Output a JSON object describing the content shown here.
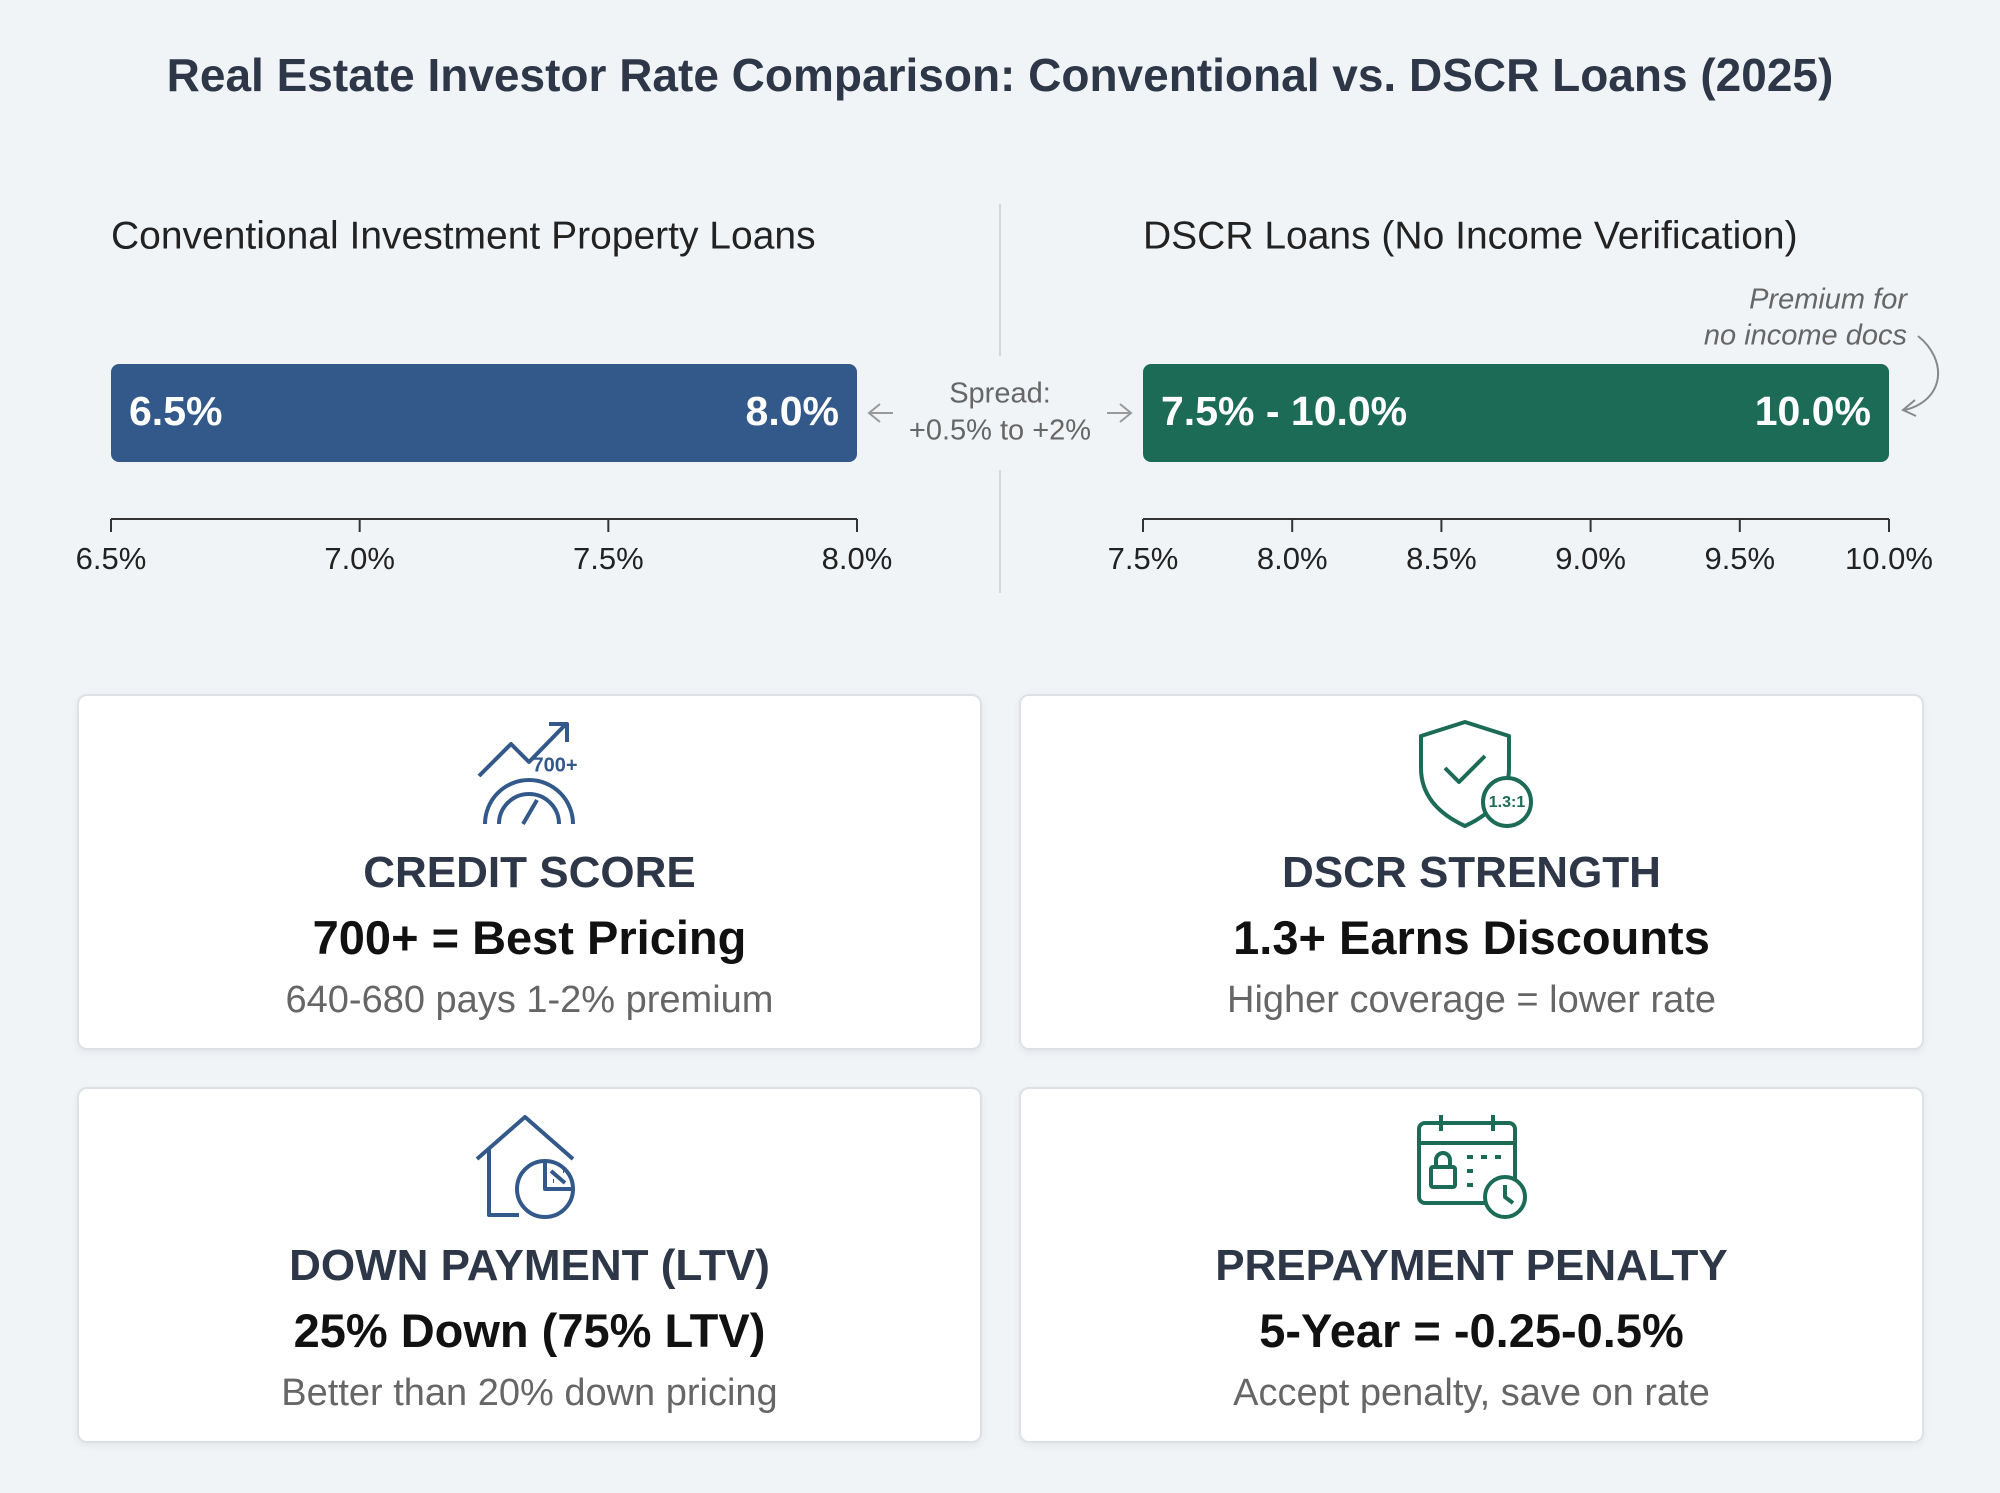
{
  "title": "Real Estate Investor Rate Comparison: Conventional vs. DSCR Loans (2025)",
  "chart_data": [
    {
      "type": "range",
      "title": "Conventional Investment Property Loans",
      "color": "#33598a",
      "low": 6.5,
      "high": 8.0,
      "low_label": "6.5%",
      "high_label": "8.0%",
      "xlim": [
        6.5,
        8.0
      ],
      "xticks": [
        {
          "value": 6.5,
          "label": "6.5%"
        },
        {
          "value": 7.0,
          "label": "7.0%"
        },
        {
          "value": 7.5,
          "label": "7.5%"
        },
        {
          "value": 8.0,
          "label": "8.0%"
        }
      ]
    },
    {
      "type": "range",
      "title": "DSCR Loans (No Income Verification)",
      "color": "#1b6b57",
      "low": 7.5,
      "high": 10.0,
      "range_label": "7.5% - 10.0%",
      "high_label": "10.0%",
      "annotation": [
        "Premium for",
        "no income docs"
      ],
      "xlim": [
        7.5,
        10.0
      ],
      "xticks": [
        {
          "value": 7.5,
          "label": "7.5%"
        },
        {
          "value": 8.0,
          "label": "8.0%"
        },
        {
          "value": 8.5,
          "label": "8.5%"
        },
        {
          "value": 9.0,
          "label": "9.0%"
        },
        {
          "value": 9.5,
          "label": "9.5%"
        },
        {
          "value": 10.0,
          "label": "10.0%"
        }
      ]
    }
  ],
  "spread": [
    "Spread:",
    "+0.5% to +2%"
  ],
  "cards": [
    {
      "icon_label": "700+",
      "heading": "CREDIT SCORE",
      "main": "700+ = Best Pricing",
      "sub": "640-680 pays 1-2% premium"
    },
    {
      "icon_label": "1.3:1",
      "heading": "DSCR STRENGTH",
      "main": "1.3+ Earns Discounts",
      "sub": "Higher coverage = lower rate"
    },
    {
      "heading": "DOWN PAYMENT (LTV)",
      "main": "25% Down (75% LTV)",
      "sub": "Better than 20% down pricing"
    },
    {
      "heading": "PREPAYMENT PENALTY",
      "main": "5-Year = -0.25-0.5%",
      "sub": "Accept penalty, save on rate"
    }
  ]
}
